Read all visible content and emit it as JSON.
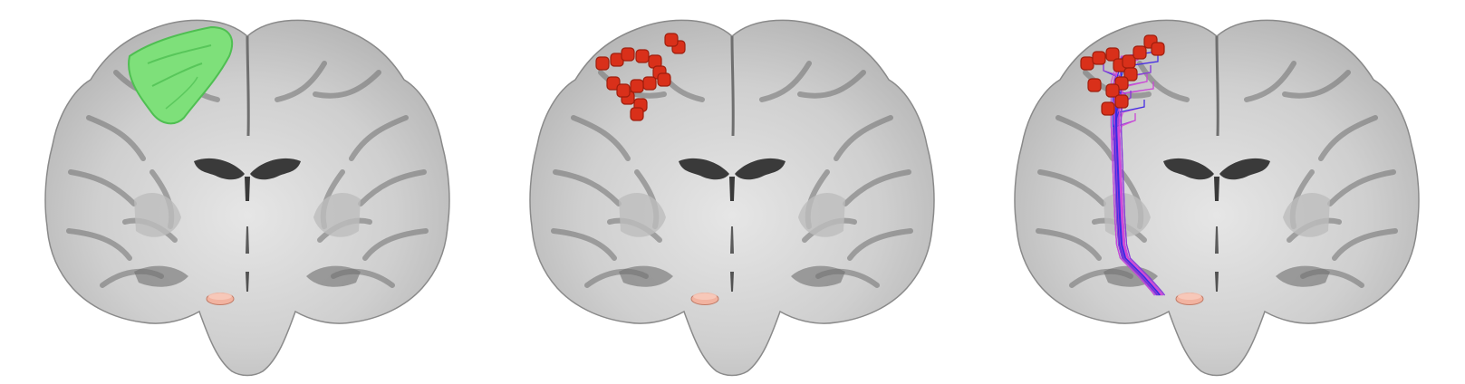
{
  "figure": {
    "panels": [
      {
        "id": "roi",
        "overlay": "region-of-interest-surface"
      },
      {
        "id": "endpoints",
        "overlay": "cortical-seed-blobs"
      },
      {
        "id": "tracts",
        "overlay": "streamlines-to-seed"
      }
    ]
  },
  "colors": {
    "background": "#ffffff",
    "brain_outer": "#b4b4b4",
    "brain_mid": "#cfcfcf",
    "white_matter": "#e6e6e6",
    "sulcus": "#6f6f6f",
    "ventricle": "#3a3a3a",
    "roi_green": "#7ee07a",
    "roi_green_edge": "#4fbf52",
    "seed_red": "#d9301a",
    "seed_red_dark": "#9e1e0d",
    "target_pink": "#f2b3a0",
    "target_edge": "#c07a66",
    "tract_blue": "#2a2ae6",
    "tract_purple": "#9a3cd6",
    "tract_magenta": "#d64bd6"
  }
}
